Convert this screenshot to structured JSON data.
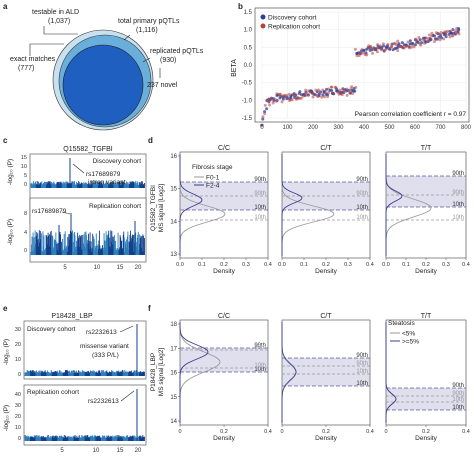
{
  "panel_letters": [
    "a",
    "b",
    "c",
    "d",
    "e",
    "f"
  ],
  "venn": {
    "labels": [
      "testable in ALD",
      "(1,037)",
      "exact matches",
      "(777)",
      "total primary pQTLs",
      "(1,116)",
      "replicated pQTLs",
      "(930)",
      "237 novel"
    ],
    "colors": {
      "outer": "#c9e0ef",
      "middle": "#6aaedb",
      "inner": "#1f5fbf"
    }
  },
  "scatter_b": {
    "ylabel": "BETA",
    "legend": [
      "Discovery cohort",
      "Replication cohort"
    ],
    "colors": [
      "#2b3d9e",
      "#b5433a"
    ],
    "annotation": "Pearson correlation coefficient r = 0.97",
    "x_ticks": [
      "0",
      "100",
      "200",
      "300",
      "400",
      "500",
      "600",
      "700",
      "800"
    ],
    "y_ticks": [
      "-1.5",
      "-1.0",
      "-0.5",
      "0.0",
      "0.5",
      "1.0",
      "1.5"
    ]
  },
  "manhattan_c": {
    "title": "Q15582_TGFBI",
    "top": {
      "cohort": "Discovery cohort",
      "variant": "rs17689879",
      "variant_note": "intron variant",
      "y_ticks": [
        "0",
        "5",
        "10",
        "15"
      ]
    },
    "bottom": {
      "cohort": "Replication cohort",
      "variant": "rs17689879",
      "y_ticks": [
        "0",
        "4",
        "8"
      ]
    },
    "x_ticks": [
      "5",
      "10",
      "15",
      "20"
    ],
    "ylabel": "-log₁₀ (P)"
  },
  "density_d": {
    "col_titles": [
      "C/C",
      "C/T",
      "T/T"
    ],
    "ylabel": "Q15582_TGFBI",
    "ylabel2": "MS signal [Log2]",
    "xlabel": "Density",
    "x_ticks": [
      "0.0",
      "0.1",
      "0.2",
      "0.3",
      "0.4"
    ],
    "y_ticks": [
      "13",
      "14",
      "15",
      "16"
    ],
    "legend_title": "Fibrosis stage",
    "legend": [
      "F0-1",
      "F2-4"
    ],
    "pct_labels": [
      "90th",
      "10th"
    ]
  },
  "manhattan_e": {
    "title": "P18428_LBP",
    "top": {
      "cohort": "Discovery cohort",
      "variant": "rs2232613",
      "variant_note": "missense variant",
      "variant_note2": "(333 P/L)",
      "y_ticks": [
        "0",
        "10",
        "20",
        "30"
      ]
    },
    "bottom": {
      "cohort": "Replication cohort",
      "variant": "rs2232613",
      "y_ticks": [
        "0",
        "10",
        "20",
        "30",
        "40"
      ]
    },
    "x_ticks": [
      "5",
      "10",
      "15",
      "20"
    ],
    "ylabel": "-log₁₀ (P)"
  },
  "density_f": {
    "col_titles": [
      "C/C",
      "C/T",
      "T/T"
    ],
    "ylabel": "P18428_LBP",
    "ylabel2": "MS signal [Log2]",
    "xlabel": "Density",
    "x_ticks": [
      "0",
      "0.2",
      "0.4"
    ],
    "y_ticks": [
      "14",
      "15",
      "16",
      "17",
      "18"
    ],
    "legend_title": "Steatosis",
    "legend": [
      "<5%",
      ">=5%"
    ],
    "pct_labels": [
      "90th",
      "10th"
    ]
  }
}
